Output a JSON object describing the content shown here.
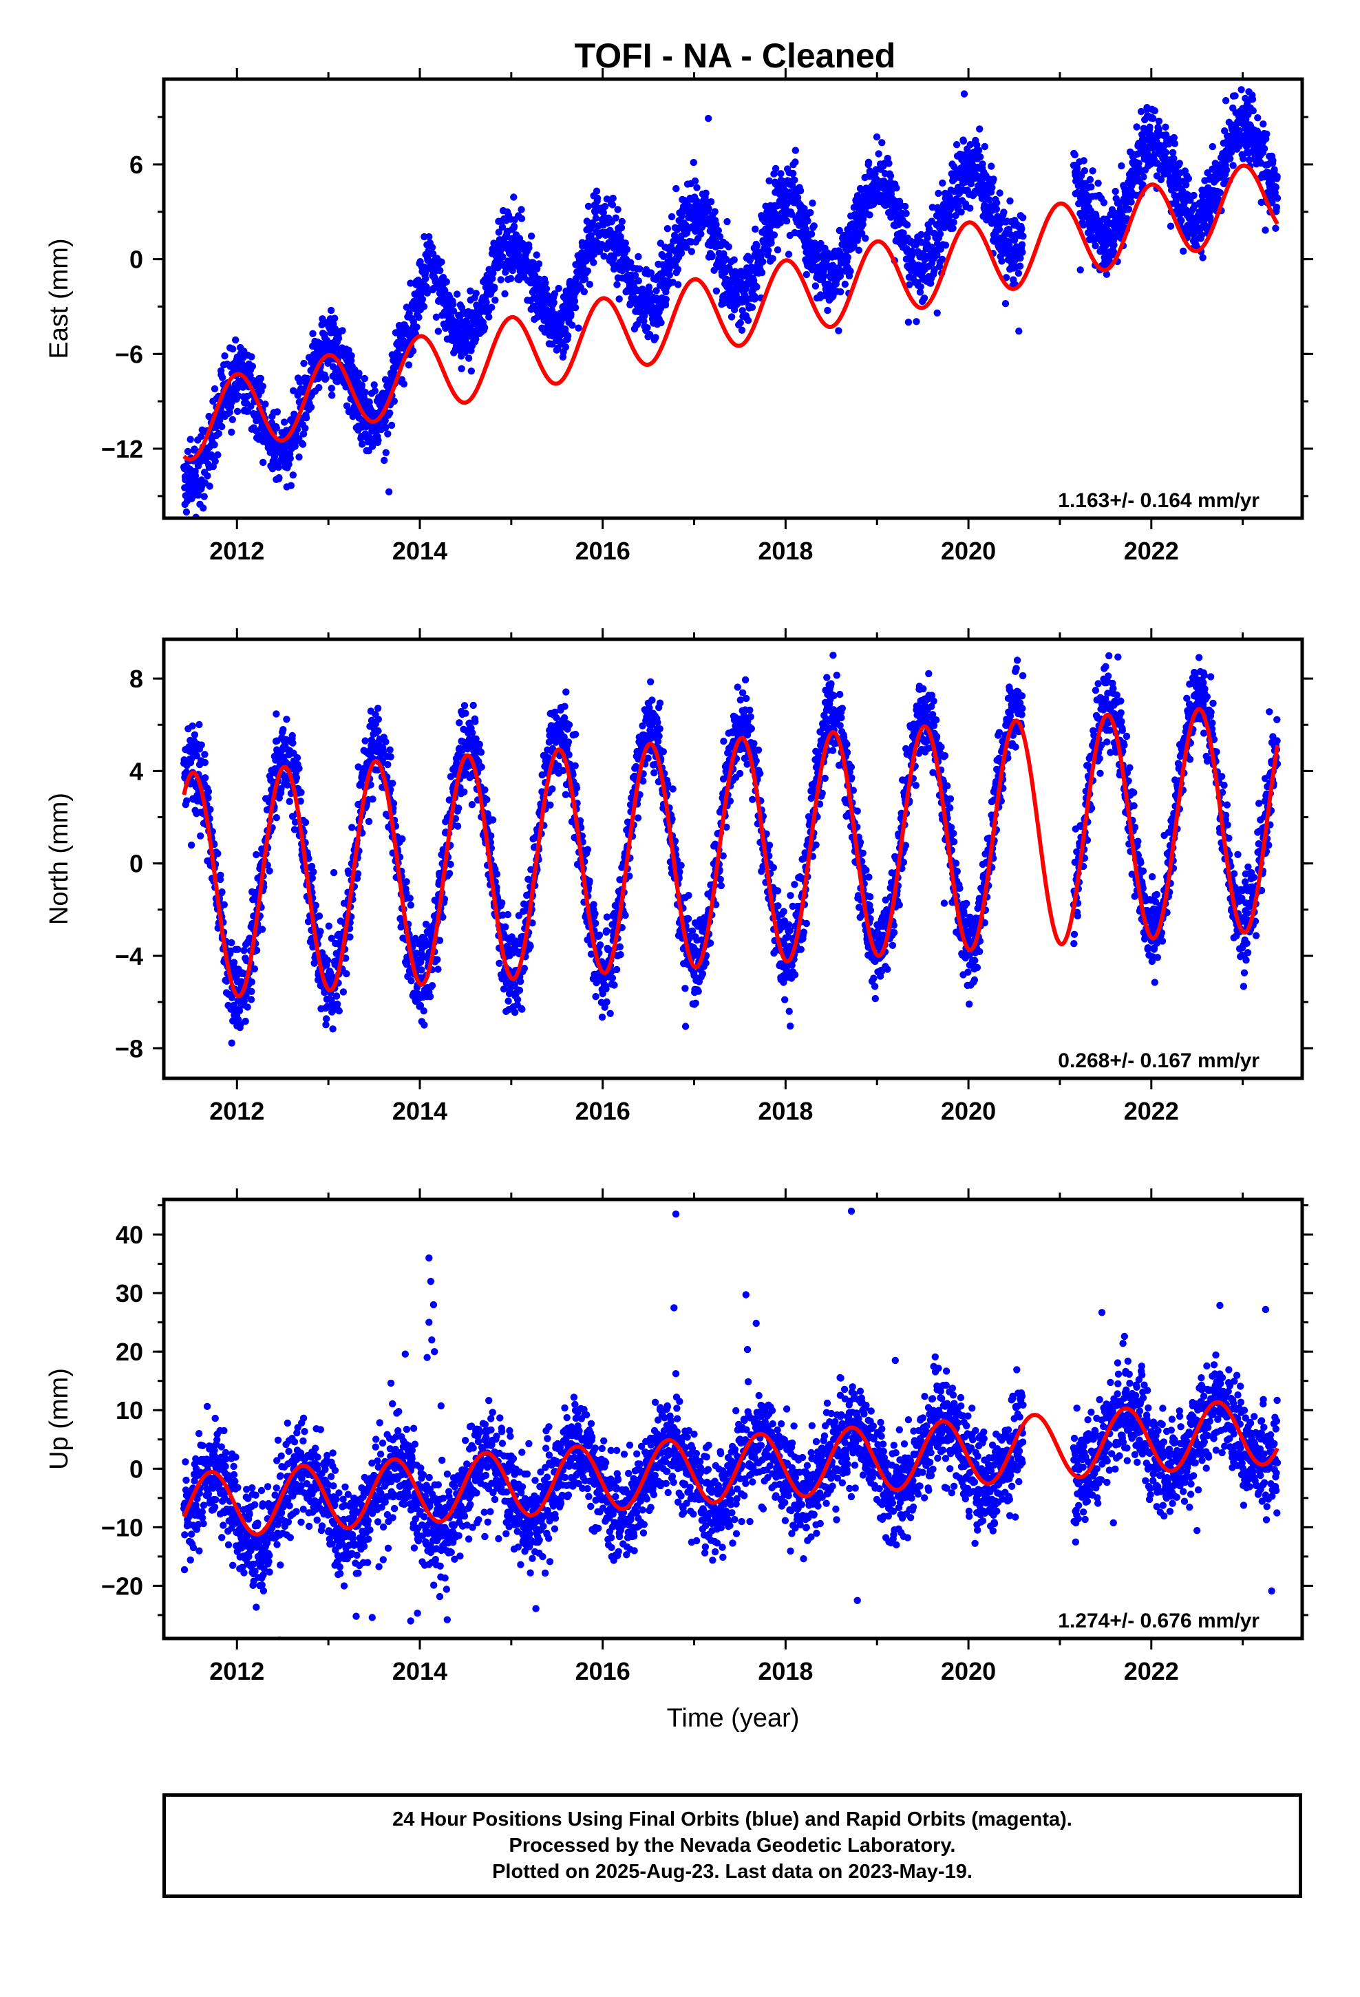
{
  "title": "TOFI  - NA - Cleaned",
  "colors": {
    "points": "#0000ff",
    "model": "#ff0000",
    "frame": "#000000"
  },
  "footer": {
    "line1": "24 Hour Positions Using Final Orbits (blue) and Rapid Orbits (magenta).",
    "line2": "Processed by the Nevada Geodetic Laboratory.",
    "line3": "Plotted on 2025-Aug-23. Last data on 2023-May-19."
  },
  "chart_data": [
    {
      "type": "scatter",
      "ylabel": "East (mm)",
      "xlabel": "",
      "xlim": [
        2011.2,
        2023.65
      ],
      "ylim": [
        -16.4,
        11.4
      ],
      "xticks": [
        2012,
        2014,
        2016,
        2018,
        2020,
        2022
      ],
      "yticks": [
        -12,
        -6,
        0,
        6
      ],
      "ytick_labels": [
        "−12",
        "−6",
        "0",
        "6"
      ],
      "rate": "1.163+/- 0.164 mm/yr",
      "data_range": [
        2011.42,
        2023.38
      ],
      "gaps": [
        [
          2020.6,
          2021.15
        ]
      ],
      "model": {
        "rate_mm_yr": 1.163,
        "anchor": [
          [
            2011.4,
            -10.4
          ],
          [
            2023.4,
            4.0
          ]
        ],
        "annual_amplitude": 2.4,
        "peak_phase": 0.0,
        "offsets": [
          [
            2014.0,
            2.5
          ]
        ]
      },
      "points": {
        "true_trend": [
          [
            2011.4,
            -11.5
          ],
          [
            2013.9,
            -6.5
          ],
          [
            2014.1,
            -2.5
          ],
          [
            2023.4,
            6.0
          ]
        ],
        "true_amplitude": 2.8,
        "scatter": 1.1,
        "outlier_rate": 0.004,
        "outlier_size": 5
      }
    },
    {
      "type": "scatter",
      "ylabel": "North (mm)",
      "xlabel": "",
      "xlim": [
        2011.2,
        2023.65
      ],
      "ylim": [
        -9.3,
        9.7
      ],
      "xticks": [
        2012,
        2014,
        2016,
        2018,
        2020,
        2022
      ],
      "yticks": [
        -8,
        -4,
        0,
        4,
        8
      ],
      "ytick_labels": [
        "−8",
        "−4",
        "0",
        "4",
        "8"
      ],
      "rate": "0.268+/- 0.167 mm/yr",
      "data_range": [
        2011.42,
        2023.38
      ],
      "gaps": [
        [
          2020.6,
          2021.15
        ]
      ],
      "model": {
        "rate_mm_yr": 0.268,
        "anchor": [
          [
            2011.4,
            -1.0
          ],
          [
            2023.4,
            2.0
          ]
        ],
        "annual_amplitude": 4.9,
        "peak_phase": 0.52,
        "offsets": []
      },
      "points": {
        "true_trend": [
          [
            2011.4,
            -0.7
          ],
          [
            2023.4,
            2.4
          ]
        ],
        "true_amplitude": 5.1,
        "scatter": 0.9,
        "outlier_rate": 0.004,
        "outlier_size": 3
      }
    },
    {
      "type": "scatter",
      "ylabel": "Up (mm)",
      "xlabel": "Time (year)",
      "xlim": [
        2011.2,
        2023.65
      ],
      "ylim": [
        -29,
        46
      ],
      "xticks": [
        2012,
        2014,
        2016,
        2018,
        2020,
        2022
      ],
      "yticks": [
        -20,
        -10,
        0,
        10,
        20,
        30,
        40
      ],
      "ytick_labels": [
        "−20",
        "−10",
        "0",
        "10",
        "20",
        "30",
        "40"
      ],
      "rate": "1.274+/- 0.676 mm/yr",
      "data_range": [
        2011.42,
        2023.38
      ],
      "gaps": [
        [
          2020.6,
          2021.15
        ]
      ],
      "model": {
        "rate_mm_yr": 1.274,
        "anchor": [
          [
            2011.4,
            -6.5
          ],
          [
            2023.4,
            6.5
          ]
        ],
        "annual_amplitude": 5.6,
        "peak_phase": 0.72,
        "offsets": []
      },
      "points": {
        "true_trend": [
          [
            2011.4,
            -7.5
          ],
          [
            2023.4,
            6.5
          ]
        ],
        "true_amplitude": 5.5,
        "scatter": 4.2,
        "outlier_rate": 0.006,
        "outlier_size": 14,
        "extra": [
          [
            2014.1,
            36
          ],
          [
            2014.12,
            32
          ],
          [
            2014.15,
            28
          ],
          [
            2014.1,
            25
          ],
          [
            2014.13,
            22
          ],
          [
            2014.16,
            20
          ],
          [
            2014.08,
            19
          ],
          [
            2016.8,
            43.5
          ],
          [
            2016.78,
            27.5
          ],
          [
            2018.72,
            44
          ],
          [
            2014.3,
            -25.8
          ],
          [
            2013.9,
            -26
          ],
          [
            2019.2,
            18.5
          ],
          [
            2022.75,
            27.9
          ],
          [
            2023.25,
            27.2
          ]
        ]
      }
    }
  ]
}
